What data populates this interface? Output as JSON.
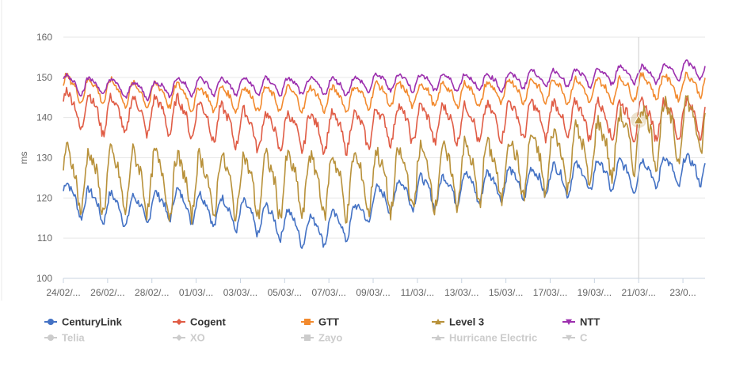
{
  "chart_data": {
    "type": "line",
    "title": "",
    "xlabel": "",
    "ylabel": "ms",
    "ylim": [
      100,
      160
    ],
    "yticks": [
      100,
      110,
      120,
      130,
      140,
      150,
      160
    ],
    "xlim": [
      0,
      29
    ],
    "x_tick_labels": [
      "24/02/...",
      "26/02/...",
      "28/02/...",
      "01/03/...",
      "03/03/...",
      "05/03/...",
      "07/03/...",
      "09/03/...",
      "11/03/...",
      "13/03/...",
      "15/03/...",
      "17/03/...",
      "19/03/...",
      "21/03/...",
      "23/0..."
    ],
    "crosshair_x": 26.0,
    "highlight_point": {
      "series": "Level 3",
      "x": 26.0,
      "y": 139
    },
    "grid": true,
    "series": [
      {
        "name": "CenturyLink",
        "color": "#4472c4",
        "marker": "circle",
        "visible": true,
        "base": [
          121,
          119,
          118,
          117,
          118,
          119,
          118,
          117,
          116,
          115,
          114,
          112,
          113,
          114,
          119,
          121,
          122,
          122,
          123,
          123,
          124,
          124,
          125,
          125,
          126,
          126,
          126,
          127,
          127,
          128
        ],
        "amp": 4.5
      },
      {
        "name": "Cogent",
        "color": "#e05c45",
        "marker": "diamond",
        "visible": true,
        "base": [
          143,
          142,
          141,
          141,
          141,
          141,
          140,
          139,
          138,
          137,
          137,
          137,
          137,
          137,
          138,
          139,
          139,
          139,
          139,
          139,
          140,
          140,
          140,
          140,
          140,
          140,
          140,
          140,
          140,
          141
        ],
        "amp": 5.5
      },
      {
        "name": "GTT",
        "color": "#f28a2e",
        "marker": "square",
        "visible": true,
        "base": [
          148,
          147,
          147,
          146,
          146,
          146,
          145,
          145,
          145,
          145,
          145,
          145,
          145,
          145,
          146,
          146,
          146,
          146,
          146,
          146,
          147,
          147,
          147,
          147,
          147,
          147,
          148,
          148,
          148,
          149
        ],
        "amp": 3.5
      },
      {
        "name": "Level 3",
        "color": "#b8913a",
        "marker": "triangle",
        "visible": true,
        "base": [
          126,
          125,
          125,
          125,
          125,
          124,
          124,
          124,
          124,
          124,
          124,
          124,
          124,
          124,
          125,
          125,
          126,
          126,
          127,
          127,
          128,
          129,
          130,
          131,
          132,
          134,
          136,
          137,
          138,
          140
        ],
        "amp": 9
      },
      {
        "name": "NTT",
        "color": "#9c2fae",
        "marker": "triangle-down",
        "visible": true,
        "base": [
          149,
          148,
          148,
          147,
          147,
          148,
          148,
          148,
          148,
          148,
          148,
          148,
          148,
          148,
          149,
          149,
          149,
          149,
          149,
          149,
          149,
          150,
          150,
          150,
          150,
          151,
          151,
          151,
          152,
          152
        ],
        "amp": 2.5
      },
      {
        "name": "Telia",
        "color": "#cccccc",
        "marker": "circle",
        "visible": false
      },
      {
        "name": "XO",
        "color": "#cccccc",
        "marker": "diamond",
        "visible": false
      },
      {
        "name": "Zayo",
        "color": "#cccccc",
        "marker": "square",
        "visible": false
      },
      {
        "name": "Hurricane Electric",
        "color": "#cccccc",
        "marker": "triangle",
        "visible": false
      },
      {
        "name": "C",
        "color": "#cccccc",
        "marker": "triangle-down",
        "visible": false
      }
    ]
  }
}
